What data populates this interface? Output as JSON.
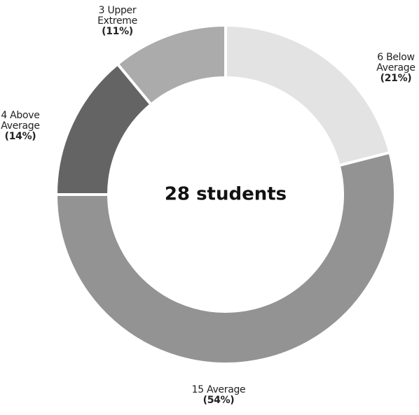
{
  "chart_data": {
    "type": "donut",
    "center_label": "28 students",
    "categories": [
      "Below Average",
      "Average",
      "Above Average",
      "Upper Extreme"
    ],
    "counts": [
      6,
      15,
      4,
      3
    ],
    "values": [
      21,
      54,
      14,
      11
    ],
    "value_labels": [
      "(21%)",
      "(54%)",
      "(14%)",
      "(11%)"
    ],
    "colors": [
      "#e3e3e3",
      "#939393",
      "#646464",
      "#ababab"
    ]
  }
}
